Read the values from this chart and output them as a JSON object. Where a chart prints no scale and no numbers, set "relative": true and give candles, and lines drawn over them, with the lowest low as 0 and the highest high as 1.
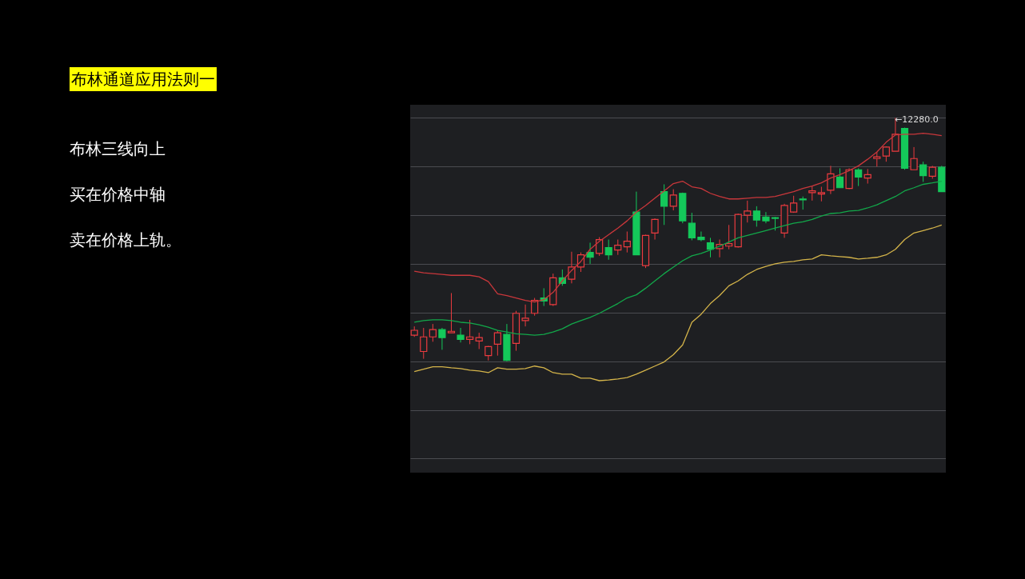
{
  "chart_data": {
    "type": "candlestick",
    "title": "布林通道应用法则一",
    "annotations": [
      "布林三线向上",
      "买在价格中轴",
      "卖在价格上轨。",
      {
        "text": "←12280.0"
      }
    ],
    "relative": true,
    "grid": "y",
    "categories": [
      null,
      null,
      null,
      null,
      null,
      null,
      null,
      null,
      null,
      null,
      null,
      null,
      null,
      null,
      null,
      null,
      null,
      null,
      null,
      null,
      null,
      null,
      null,
      null,
      null,
      null,
      null,
      null,
      null,
      null,
      null,
      null,
      null,
      null,
      null,
      null,
      null,
      null,
      null,
      null,
      null,
      null,
      null,
      null,
      null,
      null,
      null,
      null,
      null,
      null,
      null,
      null,
      null,
      null,
      null,
      null,
      null,
      null
    ],
    "ohlc": [
      [
        0.107,
        0.143,
        0.1,
        0.127
      ],
      [
        0.04,
        0.137,
        0.01,
        0.1
      ],
      [
        0.1,
        0.153,
        0.08,
        0.13
      ],
      [
        0.13,
        0.137,
        0.047,
        0.097
      ],
      [
        0.117,
        0.28,
        0.117,
        0.123
      ],
      [
        0.107,
        0.137,
        0.077,
        0.09
      ],
      [
        0.09,
        0.17,
        0.07,
        0.1
      ],
      [
        0.083,
        0.117,
        0.05,
        0.097
      ],
      [
        0.023,
        0.063,
        0.003,
        0.06
      ],
      [
        0.07,
        0.127,
        0.023,
        0.117
      ],
      [
        0.11,
        0.153,
        0,
        0.003
      ],
      [
        0.073,
        0.207,
        0.043,
        0.197
      ],
      [
        0.167,
        0.233,
        0.143,
        0.177
      ],
      [
        0.197,
        0.26,
        0.187,
        0.25
      ],
      [
        0.26,
        0.3,
        0.227,
        0.247
      ],
      [
        0.233,
        0.36,
        0.227,
        0.343
      ],
      [
        0.343,
        0.377,
        0.31,
        0.32
      ],
      [
        0.337,
        0.45,
        0.32,
        0.387
      ],
      [
        0.387,
        0.447,
        0.367,
        0.437
      ],
      [
        0.447,
        0.487,
        0.4,
        0.427
      ],
      [
        0.443,
        0.51,
        0.433,
        0.5
      ],
      [
        0.467,
        0.5,
        0.417,
        0.437
      ],
      [
        0.457,
        0.5,
        0.437,
        0.477
      ],
      [
        0.47,
        0.533,
        0.447,
        0.493
      ],
      [
        0.613,
        0.697,
        0.437,
        0.437
      ],
      [
        0.393,
        0.52,
        0.383,
        0.517
      ],
      [
        0.527,
        0.587,
        0.5,
        0.583
      ],
      [
        0.697,
        0.727,
        0.56,
        0.637
      ],
      [
        0.637,
        0.707,
        0.62,
        0.683
      ],
      [
        0.69,
        0.693,
        0.567,
        0.577
      ],
      [
        0.567,
        0.61,
        0.497,
        0.507
      ],
      [
        0.51,
        0.533,
        0.493,
        0.5
      ],
      [
        0.487,
        0.507,
        0.427,
        0.46
      ],
      [
        0.463,
        0.5,
        0.427,
        0.48
      ],
      [
        0.473,
        0.56,
        0.46,
        0.483
      ],
      [
        0.47,
        0.607,
        0.467,
        0.603
      ],
      [
        0.6,
        0.66,
        0.57,
        0.617
      ],
      [
        0.617,
        0.637,
        0.553,
        0.58
      ],
      [
        0.593,
        0.613,
        0.567,
        0.577
      ],
      [
        0.59,
        0.593,
        0.537,
        0.587
      ],
      [
        0.527,
        0.647,
        0.507,
        0.64
      ],
      [
        0.613,
        0.68,
        0.61,
        0.65
      ],
      [
        0.667,
        0.677,
        0.623,
        0.663
      ],
      [
        0.693,
        0.72,
        0.66,
        0.7
      ],
      [
        0.687,
        0.717,
        0.657,
        0.693
      ],
      [
        0.703,
        0.803,
        0.687,
        0.77
      ],
      [
        0.757,
        0.793,
        0.713,
        0.713
      ],
      [
        0.71,
        0.793,
        0.707,
        0.787
      ],
      [
        0.787,
        0.793,
        0.72,
        0.757
      ],
      [
        0.753,
        0.79,
        0.73,
        0.767
      ],
      [
        0.833,
        0.86,
        0.8,
        0.84
      ],
      [
        0.843,
        0.883,
        0.82,
        0.88
      ],
      [
        0.863,
        1,
        0.863,
        0.933
      ],
      [
        0.957,
        0.96,
        0.787,
        0.793
      ],
      [
        0.787,
        0.88,
        0.787,
        0.833
      ],
      [
        0.807,
        0.82,
        0.737,
        0.763
      ],
      [
        0.76,
        0.803,
        0.75,
        0.797
      ],
      [
        0.797,
        0.803,
        0.697,
        0.697
      ]
    ],
    "colors": [
      "#eb3b3f",
      "#eb3b3f",
      "#eb3b3f",
      "#14c85a",
      "#eb3b3f",
      "#14c85a",
      "#eb3b3f",
      "#eb3b3f",
      "#eb3b3f",
      "#eb3b3f",
      "#14c85a",
      "#eb3b3f",
      "#eb3b3f",
      "#eb3b3f",
      "#14c85a",
      "#eb3b3f",
      "#14c85a",
      "#eb3b3f",
      "#eb3b3f",
      "#14c85a",
      "#eb3b3f",
      "#14c85a",
      "#eb3b3f",
      "#eb3b3f",
      "#14c85a",
      "#eb3b3f",
      "#eb3b3f",
      "#14c85a",
      "#eb3b3f",
      "#14c85a",
      "#14c85a",
      "#14c85a",
      "#14c85a",
      "#eb3b3f",
      "#eb3b3f",
      "#eb3b3f",
      "#eb3b3f",
      "#14c85a",
      "#14c85a",
      "#14c85a",
      "#eb3b3f",
      "#eb3b3f",
      "#14c85a",
      "#eb3b3f",
      "#eb3b3f",
      "#eb3b3f",
      "#14c85a",
      "#eb3b3f",
      "#14c85a",
      "#eb3b3f",
      "#eb3b3f",
      "#eb3b3f",
      "#eb3b3f",
      "#14c85a",
      "#eb3b3f",
      "#14c85a",
      "#eb3b3f",
      "#14c85a"
    ],
    "series": [
      {
        "type": "line",
        "color": "#c9373b",
        "values": [
          0.37,
          0.363,
          0.36,
          0.357,
          0.353,
          0.353,
          0.353,
          0.347,
          0.327,
          0.277,
          0.27,
          0.26,
          0.25,
          0.243,
          0.253,
          0.283,
          0.33,
          0.373,
          0.41,
          0.46,
          0.493,
          0.52,
          0.547,
          0.577,
          0.613,
          0.64,
          0.67,
          0.7,
          0.73,
          0.74,
          0.717,
          0.71,
          0.69,
          0.677,
          0.667,
          0.667,
          0.67,
          0.673,
          0.673,
          0.677,
          0.687,
          0.697,
          0.71,
          0.72,
          0.733,
          0.753,
          0.767,
          0.783,
          0.803,
          0.83,
          0.86,
          0.9,
          0.93,
          0.933,
          0.933,
          0.937,
          0.933,
          0.927
        ]
      },
      {
        "type": "line",
        "color": "#12a84a",
        "values": [
          0.16,
          0.167,
          0.17,
          0.17,
          0.167,
          0.16,
          0.157,
          0.15,
          0.14,
          0.127,
          0.12,
          0.113,
          0.11,
          0.107,
          0.11,
          0.12,
          0.133,
          0.153,
          0.167,
          0.18,
          0.197,
          0.217,
          0.237,
          0.26,
          0.273,
          0.3,
          0.33,
          0.36,
          0.387,
          0.413,
          0.433,
          0.443,
          0.457,
          0.473,
          0.49,
          0.507,
          0.517,
          0.527,
          0.537,
          0.547,
          0.557,
          0.567,
          0.573,
          0.583,
          0.597,
          0.607,
          0.61,
          0.617,
          0.62,
          0.63,
          0.643,
          0.66,
          0.677,
          0.7,
          0.713,
          0.727,
          0.733,
          0.74
        ]
      },
      {
        "type": "line",
        "color": "#d4b44a",
        "values": [
          -0.043,
          -0.033,
          -0.023,
          -0.023,
          -0.027,
          -0.03,
          -0.037,
          -0.04,
          -0.047,
          -0.027,
          -0.033,
          -0.033,
          -0.03,
          -0.02,
          -0.027,
          -0.047,
          -0.053,
          -0.053,
          -0.07,
          -0.07,
          -0.08,
          -0.077,
          -0.073,
          -0.067,
          -0.053,
          -0.037,
          -0.02,
          -0.003,
          0.027,
          0.067,
          0.16,
          0.193,
          0.237,
          0.27,
          0.31,
          0.33,
          0.357,
          0.377,
          0.39,
          0.4,
          0.407,
          0.41,
          0.417,
          0.42,
          0.437,
          0.433,
          0.43,
          0.427,
          0.42,
          0.423,
          0.427,
          0.437,
          0.46,
          0.5,
          0.527,
          0.537,
          0.547,
          0.56
        ]
      }
    ]
  }
}
